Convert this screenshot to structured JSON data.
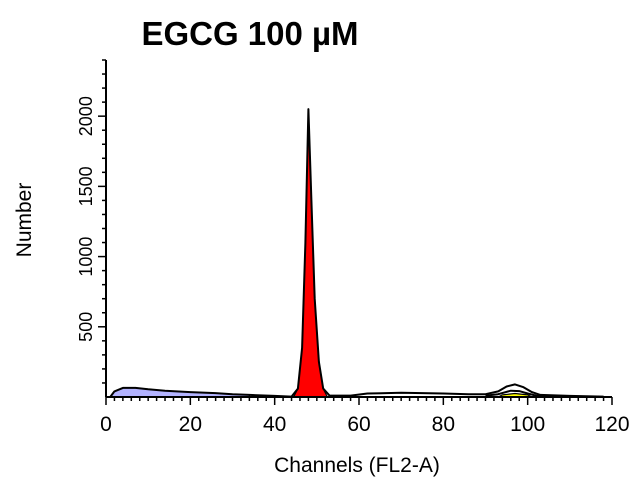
{
  "chart_data": {
    "type": "area",
    "title": "EGCG 100 µM",
    "xlabel": "Channels (FL2-A)",
    "ylabel": "Number",
    "xlim": [
      0,
      120
    ],
    "ylim": [
      0,
      2400
    ],
    "grid": false,
    "legend": "none",
    "x_ticks": [
      0,
      20,
      40,
      60,
      80,
      100,
      120
    ],
    "x_tick_labels": [
      "0",
      "20",
      "40",
      "60",
      "80",
      "100",
      "120"
    ],
    "y_ticks": [
      500,
      1000,
      1500,
      2000
    ],
    "y_tick_labels": [
      "500",
      "1000",
      "1500",
      "2000"
    ],
    "colors": {
      "g1_peak": "#ff0000",
      "debris": "#b3b3ff",
      "g2_peak": "#ffff00",
      "outline": "#000000"
    },
    "series": [
      {
        "type": "area",
        "color": "#ff0000",
        "points": [
          [
            44.5,
            0
          ],
          [
            45.5,
            60
          ],
          [
            46.5,
            350
          ],
          [
            47.3,
            1100
          ],
          [
            48.0,
            2050
          ],
          [
            48.7,
            1400
          ],
          [
            49.5,
            700
          ],
          [
            50.5,
            250
          ],
          [
            51.5,
            60
          ],
          [
            52.5,
            0
          ]
        ]
      },
      {
        "type": "area",
        "color": "#b3b3ff",
        "points": [
          [
            1,
            0
          ],
          [
            2,
            40
          ],
          [
            4,
            65
          ],
          [
            7,
            65
          ],
          [
            10,
            55
          ],
          [
            14,
            45
          ],
          [
            20,
            35
          ],
          [
            26,
            28
          ],
          [
            30,
            20
          ],
          [
            34,
            15
          ],
          [
            34,
            0
          ]
        ]
      },
      {
        "type": "area",
        "color": "#ffff00",
        "points": [
          [
            93,
            0
          ],
          [
            94,
            15
          ],
          [
            97,
            25
          ],
          [
            100,
            15
          ],
          [
            101,
            0
          ]
        ]
      },
      {
        "type": "line",
        "color": "#000000",
        "points": [
          [
            1,
            0
          ],
          [
            2,
            40
          ],
          [
            4,
            65
          ],
          [
            7,
            65
          ],
          [
            10,
            55
          ],
          [
            14,
            45
          ],
          [
            20,
            35
          ],
          [
            26,
            28
          ],
          [
            30,
            20
          ],
          [
            34,
            15
          ],
          [
            40,
            8
          ],
          [
            44,
            3
          ],
          [
            45.5,
            60
          ],
          [
            46.5,
            350
          ],
          [
            47.3,
            1100
          ],
          [
            48.0,
            2050
          ],
          [
            48.7,
            1400
          ],
          [
            49.5,
            700
          ],
          [
            50.5,
            250
          ],
          [
            51.5,
            60
          ],
          [
            53,
            10
          ],
          [
            58,
            10
          ],
          [
            62,
            25
          ],
          [
            70,
            30
          ],
          [
            80,
            25
          ],
          [
            86,
            20
          ],
          [
            90,
            20
          ],
          [
            93,
            40
          ],
          [
            95,
            75
          ],
          [
            97,
            90
          ],
          [
            99,
            70
          ],
          [
            101,
            35
          ],
          [
            103,
            15
          ],
          [
            110,
            8
          ],
          [
            118,
            3
          ]
        ]
      },
      {
        "type": "line",
        "color": "#000000",
        "points": [
          [
            90,
            10
          ],
          [
            93,
            20
          ],
          [
            96,
            45
          ],
          [
            98,
            42
          ],
          [
            100,
            25
          ],
          [
            102,
            10
          ],
          [
            105,
            5
          ]
        ]
      }
    ]
  }
}
